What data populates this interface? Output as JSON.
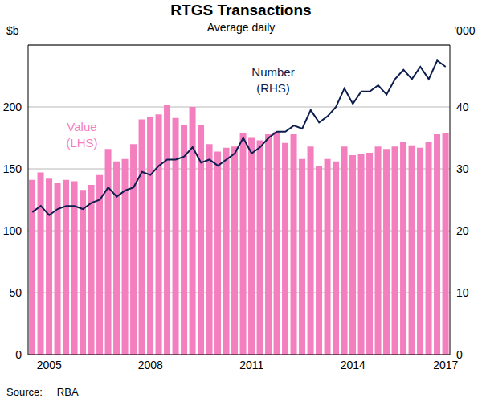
{
  "chart_data": {
    "type": "bar",
    "title": "RTGS Transactions",
    "subtitle": "Average daily",
    "source": "Source:     RBA",
    "y_label": "$b",
    "y2_label": "’000",
    "categories": [
      null,
      null,
      "2005",
      null,
      null,
      null,
      null,
      null,
      null,
      null,
      null,
      null,
      null,
      null,
      "2008",
      null,
      null,
      null,
      null,
      null,
      null,
      null,
      null,
      null,
      null,
      null,
      "2011",
      null,
      null,
      null,
      null,
      null,
      null,
      null,
      null,
      null,
      null,
      null,
      "2014",
      null,
      null,
      null,
      null,
      null,
      null,
      null,
      null,
      null,
      null,
      "2017"
    ],
    "ylim": [
      0,
      250
    ],
    "yticks": [
      0,
      50,
      100,
      150,
      200
    ],
    "y2lim": [
      0,
      50
    ],
    "y2ticks": [
      0,
      10,
      20,
      30,
      40
    ],
    "grid": true,
    "series": [
      {
        "name": "Value",
        "annotation": "(LHS)",
        "type": "bar",
        "color": "#f47fbf",
        "values": [
          141,
          147,
          142,
          139,
          141,
          140,
          133,
          137,
          145,
          166,
          156,
          158,
          170,
          190,
          192,
          194,
          202,
          191,
          185,
          200,
          185,
          170,
          164,
          167,
          168,
          179,
          175,
          173,
          178,
          180,
          171,
          178,
          158,
          168,
          152,
          158,
          156,
          168,
          161,
          162,
          163,
          168,
          166,
          168,
          172,
          169,
          167,
          172,
          178,
          179
        ]
      },
      {
        "name": "Number",
        "annotation": "(RHS)",
        "type": "line",
        "axis": "y2",
        "color": "#0c1d4e",
        "values": [
          23,
          24,
          22.5,
          23.5,
          24,
          24,
          23.5,
          24.5,
          25,
          27,
          25.5,
          26.5,
          27,
          29.5,
          29,
          30.5,
          31.5,
          31.5,
          32,
          33.5,
          31,
          31.5,
          30.5,
          31.5,
          32.5,
          35,
          32.5,
          33.5,
          35,
          36,
          36,
          37,
          36.5,
          39.5,
          37.5,
          38.5,
          40,
          43,
          40.5,
          42.5,
          42.5,
          43.5,
          42,
          44.5,
          46,
          44.5,
          46.5,
          44.5,
          47.5,
          46.5
        ]
      }
    ]
  }
}
